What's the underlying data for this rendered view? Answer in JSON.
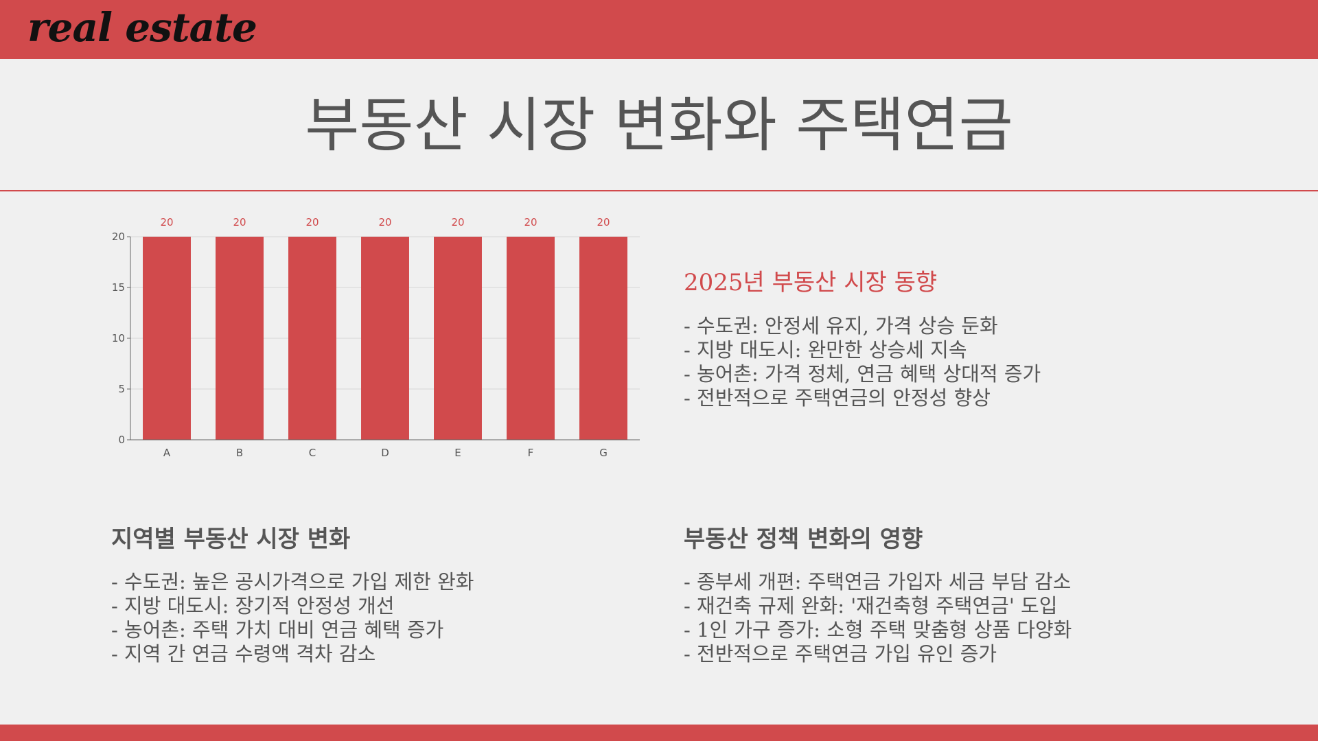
{
  "brand": "real estate",
  "page_title": "부동산 시장 변화와 주택연금",
  "colors": {
    "accent": "#d14a4c",
    "text": "#555555",
    "background": "#f0f0f0"
  },
  "chart_data": {
    "type": "bar",
    "categories": [
      "A",
      "B",
      "C",
      "D",
      "E",
      "F",
      "G"
    ],
    "values": [
      20,
      20,
      20,
      20,
      20,
      20,
      20
    ],
    "ylim": [
      0,
      20
    ],
    "yticks": [
      0,
      5,
      10,
      15,
      20
    ],
    "data_labels": true,
    "grid": true,
    "bar_color": "#d14a4c"
  },
  "section_trend": {
    "title": "2025년 부동산 시장 동향",
    "items": [
      "- 수도권: 안정세 유지, 가격 상승 둔화",
      "- 지방 대도시: 완만한 상승세 지속",
      "- 농어촌: 가격 정체, 연금 혜택 상대적 증가",
      "- 전반적으로 주택연금의 안정성 향상"
    ]
  },
  "section_region": {
    "title": "지역별 부동산 시장 변화",
    "items": [
      "- 수도권: 높은 공시가격으로 가입 제한 완화",
      "- 지방 대도시: 장기적 안정성 개선",
      "- 농어촌: 주택 가치 대비 연금 혜택 증가",
      "- 지역 간 연금 수령액 격차 감소"
    ]
  },
  "section_policy": {
    "title": "부동산 정책 변화의 영향",
    "items": [
      "- 종부세 개편: 주택연금 가입자 세금 부담 감소",
      "- 재건축 규제 완화: '재건축형 주택연금' 도입",
      "- 1인 가구 증가: 소형 주택 맞춤형 상품 다양화",
      "- 전반적으로 주택연금 가입 유인 증가"
    ]
  }
}
